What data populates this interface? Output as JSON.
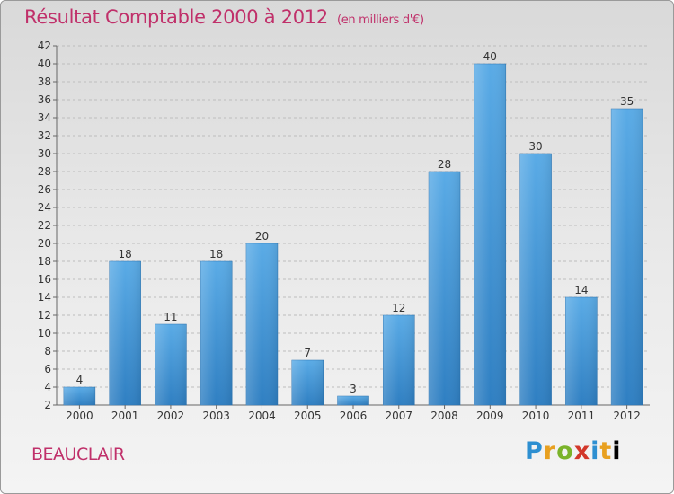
{
  "header": {
    "title": "Résultat Comptable 2000 à 2012",
    "unit": "(en milliers d'€)"
  },
  "commune": "BEAUCLAIR",
  "logo": {
    "letters": [
      "P",
      "r",
      "o",
      "x",
      "i",
      "t",
      "i"
    ]
  },
  "colors": {
    "bar_top": "#5aabe6",
    "bar_bottom": "#2f7fc2",
    "title": "#c0306a",
    "grid": "#bdbdbd"
  },
  "chart_data": {
    "type": "bar",
    "title": "Résultat Comptable 2000 à 2012",
    "xlabel": "",
    "ylabel": "",
    "categories": [
      "2000",
      "2001",
      "2002",
      "2003",
      "2004",
      "2005",
      "2006",
      "2007",
      "2008",
      "2009",
      "2010",
      "2011",
      "2012"
    ],
    "values": [
      4,
      18,
      11,
      18,
      20,
      7,
      3,
      12,
      28,
      40,
      30,
      14,
      35
    ],
    "ylim": [
      2,
      42
    ],
    "yticks": [
      2,
      4,
      6,
      8,
      10,
      12,
      14,
      16,
      18,
      20,
      22,
      24,
      26,
      28,
      30,
      32,
      34,
      36,
      38,
      40,
      42
    ],
    "grid": true
  }
}
